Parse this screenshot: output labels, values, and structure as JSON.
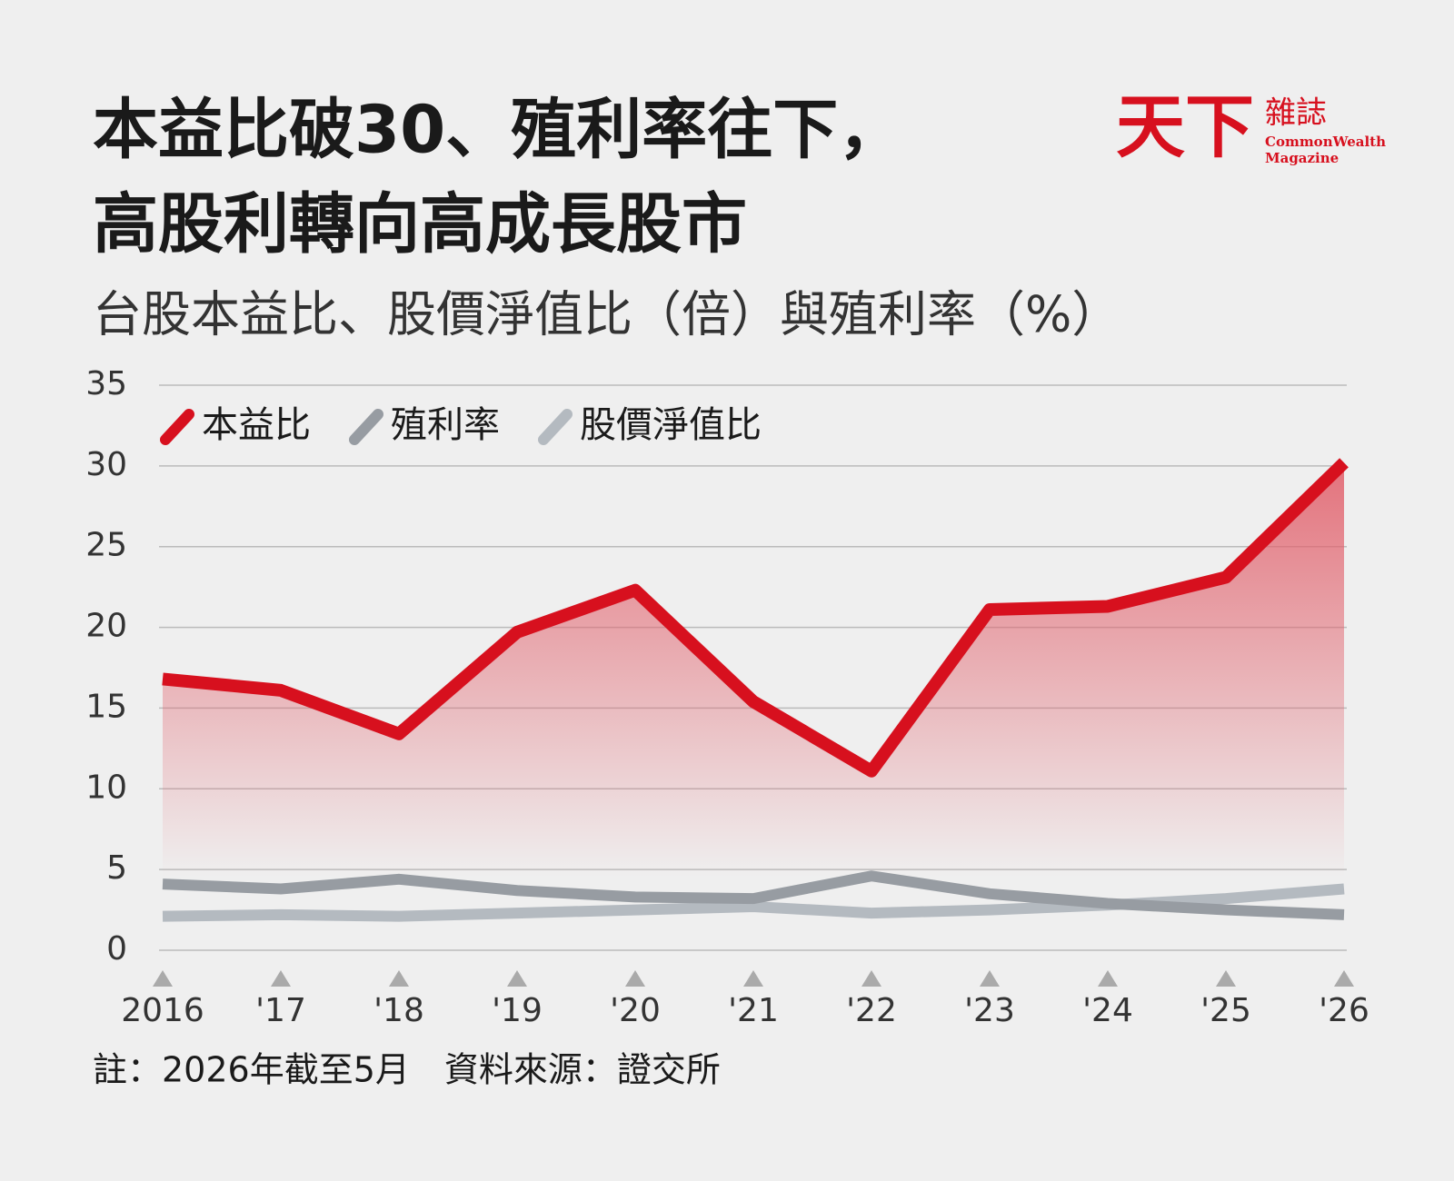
{
  "logo": {
    "mark": "天下",
    "name": "雜誌",
    "english": [
      "CommonWealth",
      "Magazine"
    ]
  },
  "chart_data": {
    "type": "line",
    "title": [
      "本益比破30、殖利率往下，",
      "高股利轉向高成長股市"
    ],
    "subtitle": "台股本益比、股價淨值比（倍）與殖利率（%）",
    "categories": [
      "2016",
      "'17",
      "'18",
      "'19",
      "'20",
      "'21",
      "'22",
      "'23",
      "'24",
      "'25",
      "'26"
    ],
    "series": [
      {
        "name": "本益比",
        "color": "#d7101e",
        "area": true,
        "values": [
          16.8,
          16.1,
          13.4,
          19.7,
          22.3,
          15.4,
          11.1,
          21.1,
          21.3,
          23.1,
          30.2
        ]
      },
      {
        "name": "殖利率",
        "color": "#979ca2",
        "values": [
          4.1,
          3.8,
          4.4,
          3.7,
          3.3,
          3.2,
          4.6,
          3.5,
          2.9,
          2.5,
          2.2
        ]
      },
      {
        "name": "股價淨值比",
        "color": "#b4bac0",
        "values": [
          2.1,
          2.2,
          2.1,
          2.3,
          2.5,
          2.7,
          2.3,
          2.5,
          2.8,
          3.2,
          3.8
        ]
      }
    ],
    "ylim": [
      0,
      35
    ],
    "yticks": [
      0,
      5,
      10,
      15,
      20,
      25,
      30,
      35
    ],
    "grid": true,
    "legend": "top-left",
    "note": "註：2026年截至5月　資料來源：證交所"
  }
}
